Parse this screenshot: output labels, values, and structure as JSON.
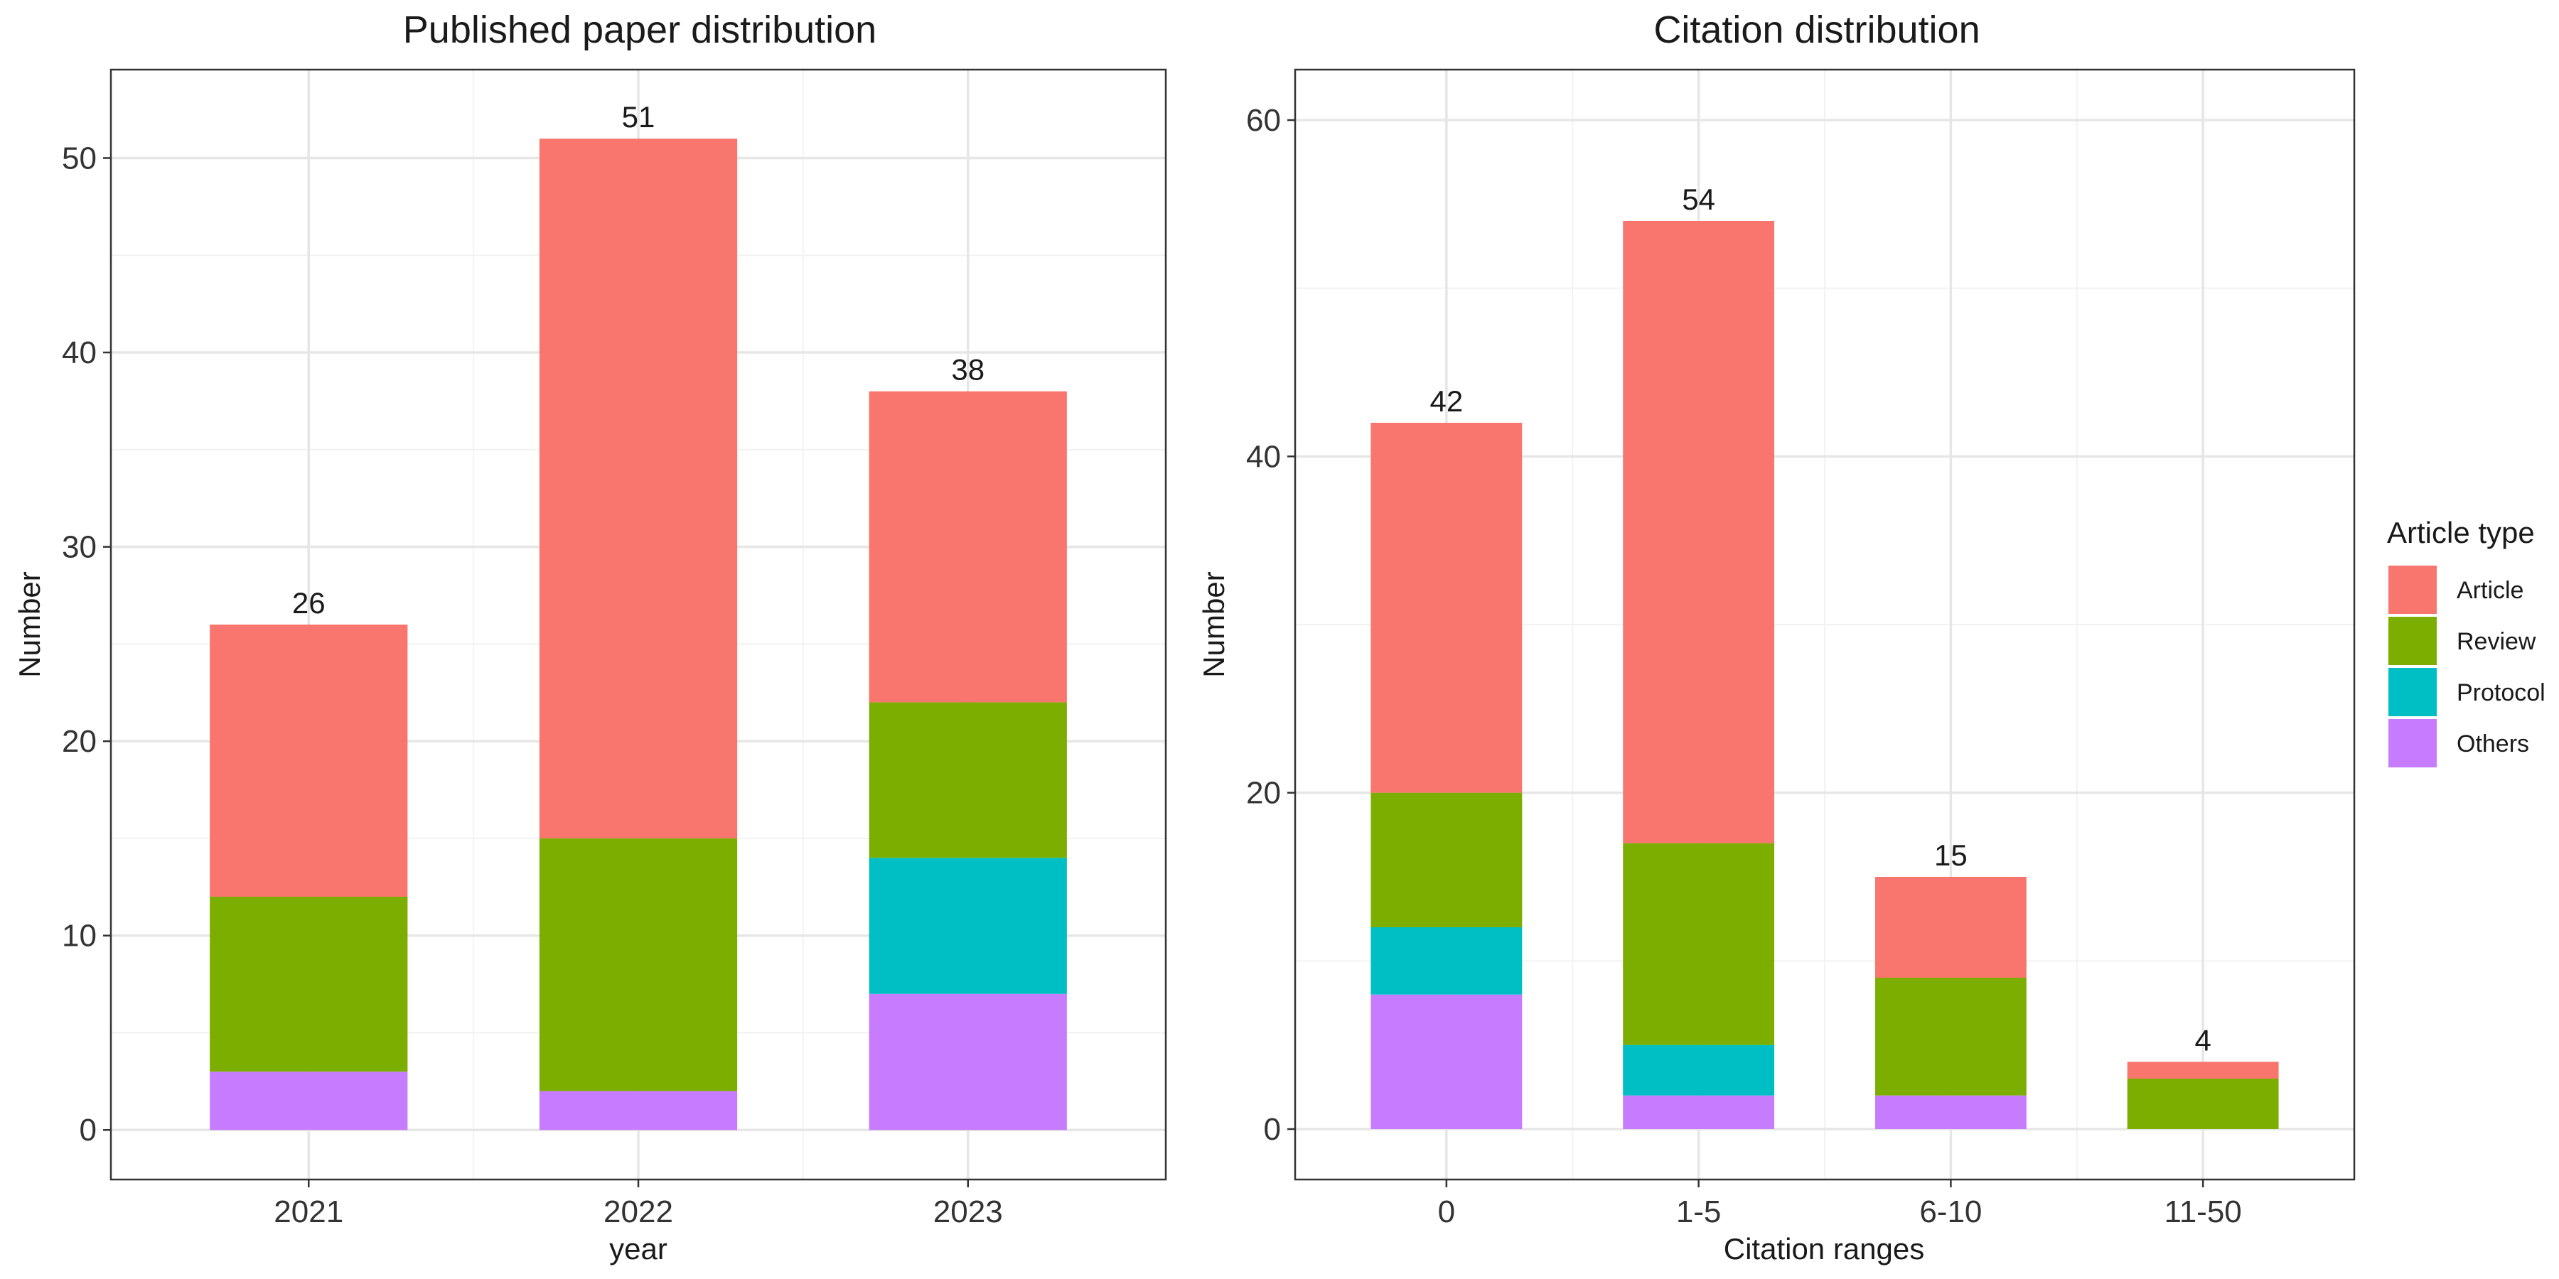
{
  "legend": {
    "title": "Article type",
    "items": [
      {
        "name": "Article",
        "color": "#F8766D"
      },
      {
        "name": "Review",
        "color": "#7CAE00"
      },
      {
        "name": "Protocol",
        "color": "#00BFC4"
      },
      {
        "name": "Others",
        "color": "#C77CFF"
      }
    ]
  },
  "chart_data": [
    {
      "type": "bar",
      "stacked": true,
      "title": "Published paper distribution",
      "xlabel": "year",
      "ylabel": "Number",
      "categories": [
        "2021",
        "2022",
        "2023"
      ],
      "ylim": [
        -2.55,
        54.55
      ],
      "yticks": [
        0,
        10,
        20,
        30,
        40,
        50
      ],
      "grid": true,
      "series": [
        {
          "name": "Others",
          "values": [
            3,
            2,
            7
          ]
        },
        {
          "name": "Protocol",
          "values": [
            0,
            0,
            7
          ]
        },
        {
          "name": "Review",
          "values": [
            9,
            13,
            8
          ]
        },
        {
          "name": "Article",
          "values": [
            14,
            36,
            16
          ]
        }
      ],
      "totals": [
        26,
        51,
        38
      ]
    },
    {
      "type": "bar",
      "stacked": true,
      "title": "Citation distribution",
      "xlabel": "Citation ranges",
      "ylabel": "Number",
      "categories": [
        "0",
        "1-5",
        "6-10",
        "11-50"
      ],
      "ylim": [
        -3,
        63
      ],
      "yticks": [
        0,
        20,
        40,
        60
      ],
      "grid": true,
      "series": [
        {
          "name": "Others",
          "values": [
            8,
            2,
            2,
            0
          ]
        },
        {
          "name": "Protocol",
          "values": [
            4,
            3,
            0,
            0
          ]
        },
        {
          "name": "Review",
          "values": [
            8,
            12,
            7,
            3
          ]
        },
        {
          "name": "Article",
          "values": [
            22,
            37,
            6,
            1
          ]
        }
      ],
      "totals": [
        42,
        54,
        15,
        4
      ]
    }
  ]
}
